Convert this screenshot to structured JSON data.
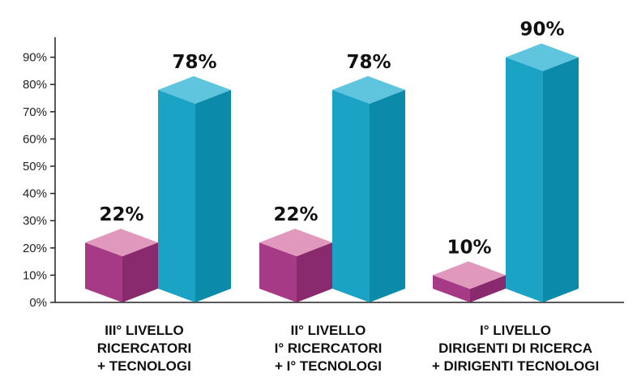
{
  "chart_data": {
    "type": "bar",
    "title": "",
    "xlabel": "",
    "ylabel": "",
    "ylim": [
      0,
      90
    ],
    "yticks": [
      "0%",
      "10%",
      "20%",
      "30%",
      "40%",
      "50%",
      "60%",
      "70%",
      "80%",
      "90%"
    ],
    "categories": [
      [
        "III° LIVELLO",
        "RICERCATORI",
        "+ TECNOLOGI"
      ],
      [
        "II° LIVELLO",
        "I° RICERCATORI",
        "+ I° TECNOLOGI"
      ],
      [
        "I° LIVELLO",
        "DIRIGENTI DI RICERCA",
        "+ DIRIGENTI TECNOLOGI"
      ]
    ],
    "series": [
      {
        "values": [
          22,
          22,
          10
        ],
        "labels": [
          "22%",
          "22%",
          "10%"
        ],
        "color_front": "#a63a86",
        "color_side": "#8a2a6e",
        "color_top": "#e198bd"
      },
      {
        "values": [
          78,
          78,
          90
        ],
        "labels": [
          "78%",
          "78%",
          "90%"
        ],
        "color_front": "#1aa3c4",
        "color_side": "#0c8aa9",
        "color_top": "#5fc4de"
      }
    ],
    "grid": false,
    "legend": "none"
  }
}
